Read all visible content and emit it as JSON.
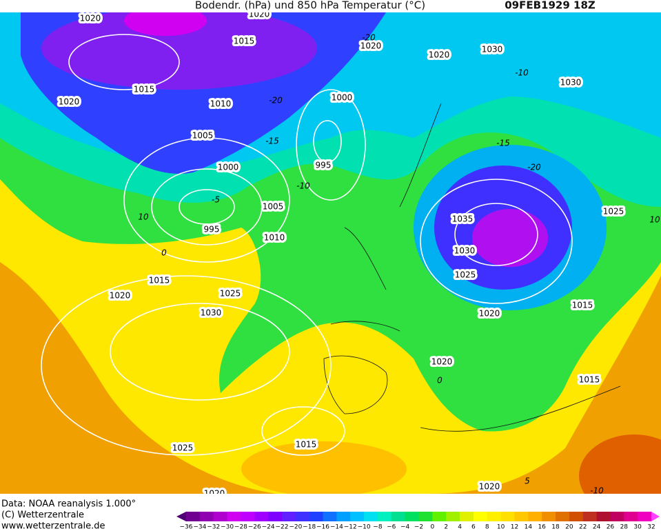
{
  "header": {
    "title": "Bodendr. (hPa) und 850 hPa Temperatur (°C)",
    "date": "09FEB1929 18Z"
  },
  "isobar_labels": [
    "1020",
    "1020",
    "1015",
    "1020",
    "1020",
    "1030",
    "1030",
    "1015",
    "1020",
    "1010",
    "1000",
    "1005",
    "995",
    "1000",
    "1005",
    "1035",
    "1025",
    "995",
    "1010",
    "1030",
    "1025",
    "1015",
    "1020",
    "1025",
    "1015",
    "1020",
    "1030",
    "1020",
    "1015",
    "1015",
    "1025",
    "1020",
    "1020"
  ],
  "temperature_labels": [
    "-20",
    "-10",
    "-20",
    "-15",
    "-15",
    "-20",
    "-10",
    "-5",
    "10",
    "0",
    "0",
    "5",
    "-10",
    "10"
  ],
  "footer": {
    "data": "Data: NOAA reanalysis 1.000°",
    "copyright": "(C) Wetterzentrale",
    "url": "www.wetterzentrale.de"
  },
  "colorbar": {
    "labels": [
      "−36",
      "−34",
      "−32",
      "−30",
      "−28",
      "−26",
      "−24",
      "−22",
      "−20",
      "−18",
      "−16",
      "−14",
      "−12",
      "−10",
      "−8",
      "−6",
      "−4",
      "−2",
      "0",
      "2",
      "4",
      "6",
      "8",
      "10",
      "12",
      "14",
      "16",
      "18",
      "20",
      "22",
      "24",
      "26",
      "28",
      "30",
      "32"
    ],
    "colors": [
      "#500070",
      "#700090",
      "#9000b0",
      "#b000d0",
      "#d000f0",
      "#c000ff",
      "#a000ff",
      "#8000ff",
      "#6020ff",
      "#4030ff",
      "#2040ff",
      "#1070ff",
      "#00a0ff",
      "#00c0ff",
      "#00e0f0",
      "#00f0c0",
      "#00e090",
      "#00e060",
      "#20e030",
      "#60f000",
      "#a0f000",
      "#e0f000",
      "#ffff00",
      "#fff000",
      "#ffe000",
      "#ffc800",
      "#ffb000",
      "#f09000",
      "#e07000",
      "#d05000",
      "#c03020",
      "#b01030",
      "#c00060",
      "#e00090",
      "#f000c0",
      "#ff40ff"
    ]
  }
}
